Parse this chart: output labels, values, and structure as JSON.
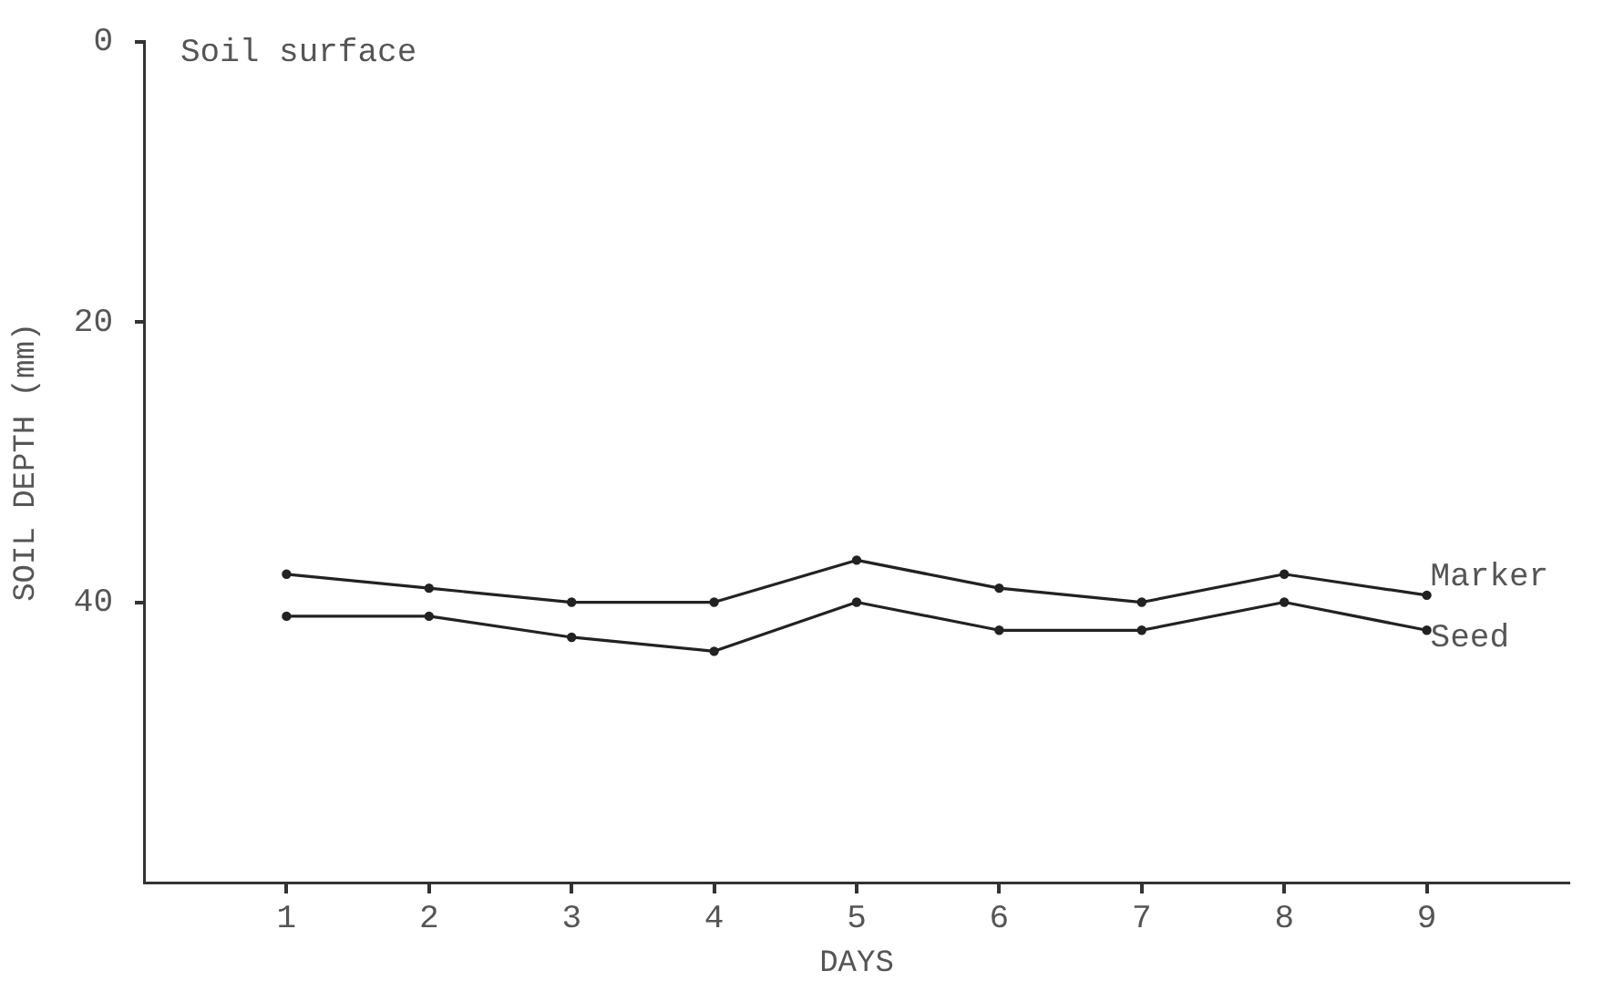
{
  "chart_data": {
    "type": "line",
    "xlabel": "DAYS",
    "ylabel": "SOIL DEPTH (mm)",
    "x": [
      1,
      2,
      3,
      4,
      5,
      6,
      7,
      8,
      9
    ],
    "series": [
      {
        "name": "Marker",
        "color": "#222222",
        "values": [
          38,
          39,
          40,
          40,
          37,
          39,
          40,
          38,
          39.5
        ]
      },
      {
        "name": "Seed",
        "color": "#222222",
        "values": [
          41,
          41,
          42.5,
          43.5,
          40,
          42,
          42,
          40,
          42
        ]
      }
    ],
    "xlim": [
      0,
      10
    ],
    "xticks": [
      1,
      2,
      3,
      4,
      5,
      6,
      7,
      8,
      9
    ],
    "ylim": [
      60,
      0
    ],
    "yticks": [
      0,
      20,
      40
    ],
    "annotations": [
      "Soil surface"
    ],
    "grid": false,
    "legend": false,
    "marker": "circle",
    "line_style": "solid"
  }
}
